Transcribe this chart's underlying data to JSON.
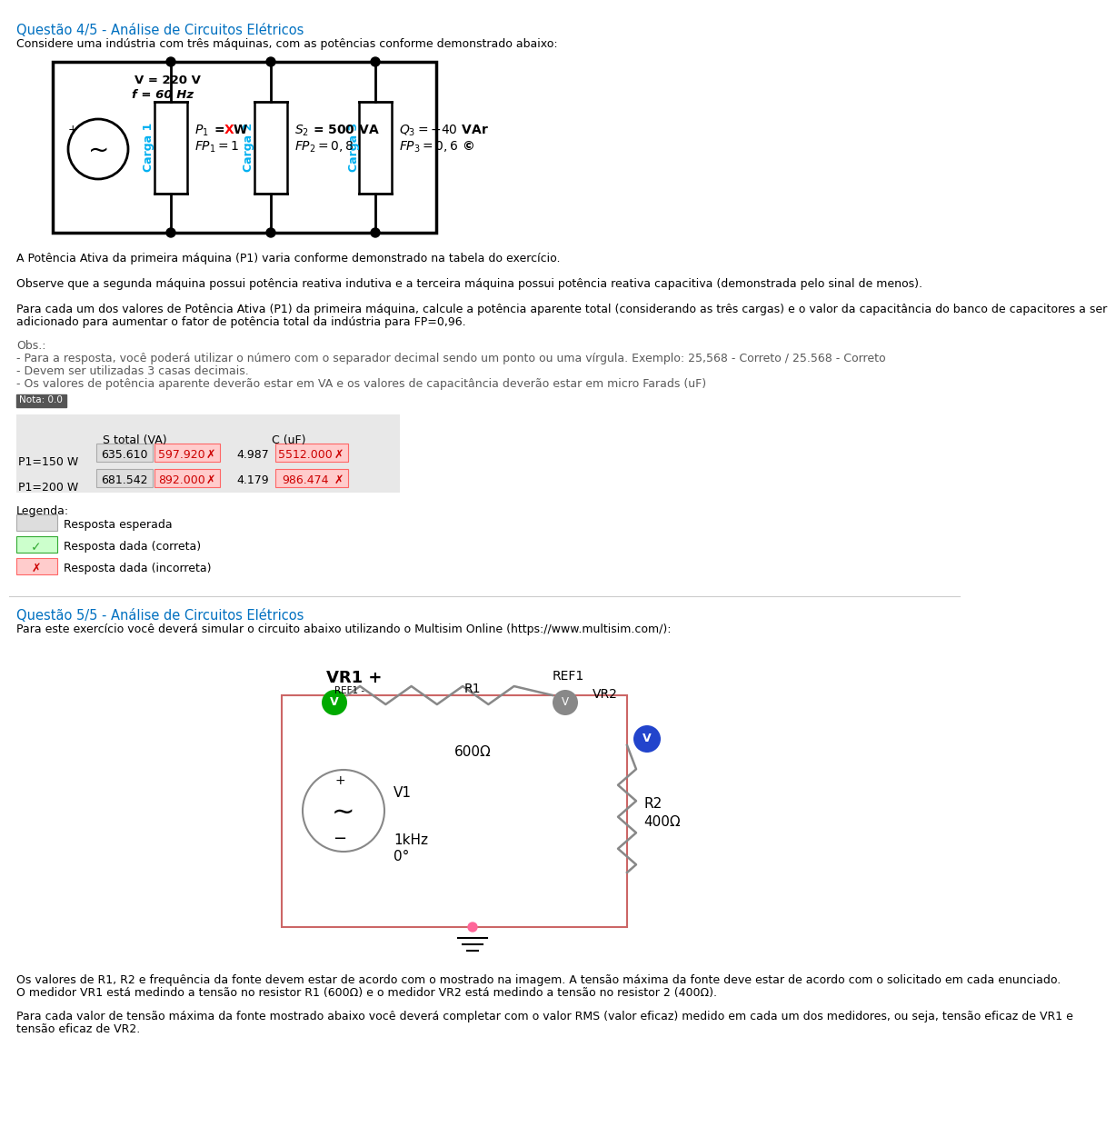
{
  "title_q4": "Questão 4/5 - Análise de Circuitos Elétricos",
  "subtitle_q4": "Considere uma indústria com três máquinas, com as potências conforme demonstrado abaixo:",
  "para1": "A Potência Ativa da primeira máquina (P1) varia conforme demonstrado na tabela do exercício.",
  "para2": "Observe que a segunda máquina possui potência reativa indutiva e a terceira máquina possui potência reativa capacitiva (demonstrada pelo sinal de menos).",
  "para3a": "Para cada um dos valores de Potência Ativa (P1) da primeira máquina, calcule a potência aparente total (considerando as três cargas) e o valor da capacitância do banco de capacitores a ser",
  "para3b": "adicionado para aumentar o fator de potência total da indústria para FP=0,96.",
  "obs_title": "Obs.:",
  "obs1": "- Para a resposta, você poderá utilizar o número com o separador decimal sendo um ponto ou uma vírgula. Exemplo: 25,568 - Correto / 25.568 - Correto",
  "obs2": "- Devem ser utilizadas 3 casas decimais.",
  "obs3": "- Os valores de potência aparente deverão estar em VA e os valores de capacitância deverão estar em micro Farads (uF)",
  "nota": "Nota: 0.0",
  "row1_label": "P1=150 W",
  "row1_s_expected": "635.610",
  "row1_s_given": "597.920",
  "row1_c_expected": "4.987",
  "row1_c_given": "5512.000",
  "row2_label": "P1=200 W",
  "row2_s_expected": "681.542",
  "row2_s_given": "892.000",
  "row2_c_expected": "4.179",
  "row2_c_given": "986.474",
  "legend_expected": "Resposta esperada",
  "legend_correct": "Resposta dada (correta)",
  "legend_incorrect": "Resposta dada (incorreta)",
  "title_q5": "Questão 5/5 - Análise de Circuitos Elétricos",
  "subtitle_q5": "Para este exercício você deverá simular o circuito abaixo utilizando o Multisim Online (https://www.multisim.com/):",
  "para_q5_1a": "Os valores de R1, R2 e frequência da fonte devem estar de acordo com o mostrado na imagem. A tensão máxima da fonte deve estar de acordo com o solicitado em cada enunciado.",
  "para_q5_1b": "O medidor VR1 está medindo a tensão no resistor R1 (600Ω) e o medidor VR2 está medindo a tensão no resistor 2 (400Ω).",
  "para_q5_2a": "Para cada valor de tensão máxima da fonte mostrado abaixo você deverá completar com o valor RMS (valor eficaz) medido em cada um dos medidores, ou seja, tensão eficaz de VR1 e",
  "para_q5_2b": "tensão eficaz de VR2.",
  "colors": {
    "title_blue": "#0070C0",
    "carga_blue": "#00B0F0",
    "text_gray": "#595959",
    "table_bg": "#E8E8E8",
    "expected_bg": "#DDDDDD",
    "expected_border": "#AAAAAA",
    "incorrect_bg": "#FFCCCC",
    "incorrect_border": "#FF6666",
    "correct_bg": "#CCFFCC",
    "correct_border": "#33AA33",
    "nota_bg": "#555555",
    "nota_text": "#FFFFFF",
    "green_circle": "#00AA00",
    "blue_circle": "#2244CC",
    "gray_circle": "#888888",
    "circuit2_border": "#CC6666",
    "ground_pink": "#FF6699"
  }
}
